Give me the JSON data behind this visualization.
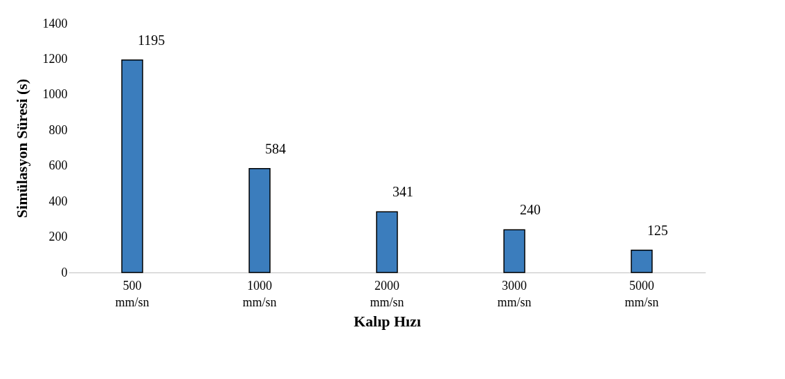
{
  "chart_data": {
    "type": "bar",
    "xlabel": "Kalıp Hızı",
    "ylabel": "Simülasyon Süresi (s)",
    "categories": [
      "500 mm/sn",
      "1000 mm/sn",
      "2000 mm/sn",
      "3000 mm/sn",
      "5000 mm/sn"
    ],
    "values": [
      1195,
      584,
      341,
      240,
      125
    ],
    "color": "#3b7dbd",
    "ylim": [
      0,
      1400
    ],
    "yticks": [
      0,
      200,
      400,
      600,
      800,
      1000,
      1200,
      1400
    ],
    "data_labels": true,
    "grid": false
  }
}
